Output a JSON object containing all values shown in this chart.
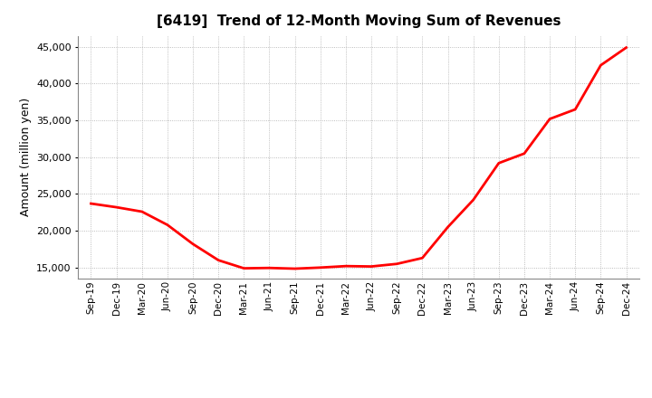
{
  "title": "[6419]  Trend of 12-Month Moving Sum of Revenues",
  "ylabel": "Amount (million yen)",
  "line_color": "#FF0000",
  "line_width": 2.0,
  "bg_color": "#FFFFFF",
  "grid_color": "#AAAAAA",
  "ylim": [
    13500,
    46500
  ],
  "yticks": [
    15000,
    20000,
    25000,
    30000,
    35000,
    40000,
    45000
  ],
  "x_labels": [
    "Sep-19",
    "Dec-19",
    "Mar-20",
    "Jun-20",
    "Sep-20",
    "Dec-20",
    "Mar-21",
    "Jun-21",
    "Sep-21",
    "Dec-21",
    "Mar-22",
    "Jun-22",
    "Sep-22",
    "Dec-22",
    "Mar-23",
    "Jun-23",
    "Sep-23",
    "Dec-23",
    "Mar-24",
    "Jun-24",
    "Sep-24",
    "Dec-24"
  ],
  "values": [
    23700,
    23200,
    22600,
    20800,
    18200,
    16000,
    14900,
    14950,
    14850,
    15000,
    15200,
    15150,
    15500,
    16300,
    20500,
    24200,
    29200,
    30500,
    35200,
    36500,
    42500,
    44900
  ]
}
